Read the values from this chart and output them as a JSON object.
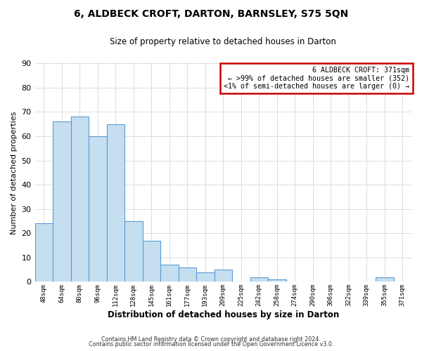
{
  "title": "6, ALDBECK CROFT, DARTON, BARNSLEY, S75 5QN",
  "subtitle": "Size of property relative to detached houses in Darton",
  "xlabel": "Distribution of detached houses by size in Darton",
  "ylabel": "Number of detached properties",
  "bar_labels": [
    "48sqm",
    "64sqm",
    "80sqm",
    "96sqm",
    "112sqm",
    "128sqm",
    "145sqm",
    "161sqm",
    "177sqm",
    "193sqm",
    "209sqm",
    "225sqm",
    "242sqm",
    "258sqm",
    "274sqm",
    "290sqm",
    "306sqm",
    "322sqm",
    "339sqm",
    "355sqm",
    "371sqm"
  ],
  "bar_values": [
    24,
    66,
    68,
    60,
    65,
    25,
    17,
    7,
    6,
    4,
    5,
    0,
    2,
    1,
    0,
    0,
    0,
    0,
    0,
    2,
    0
  ],
  "bar_color": "#c5dff0",
  "bar_edge_color": "#5b9bd5",
  "ylim": [
    0,
    90
  ],
  "yticks": [
    0,
    10,
    20,
    30,
    40,
    50,
    60,
    70,
    80,
    90
  ],
  "annotation_box_title": "6 ALDBECK CROFT: 371sqm",
  "annotation_line1": "← >99% of detached houses are smaller (352)",
  "annotation_line2": "<1% of semi-detached houses are larger (0) →",
  "annotation_box_color": "#cc0000",
  "footer_line1": "Contains HM Land Registry data © Crown copyright and database right 2024.",
  "footer_line2": "Contains public sector information licensed under the Open Government Licence v3.0.",
  "grid_color": "#d0d0d0",
  "background_color": "#ffffff"
}
